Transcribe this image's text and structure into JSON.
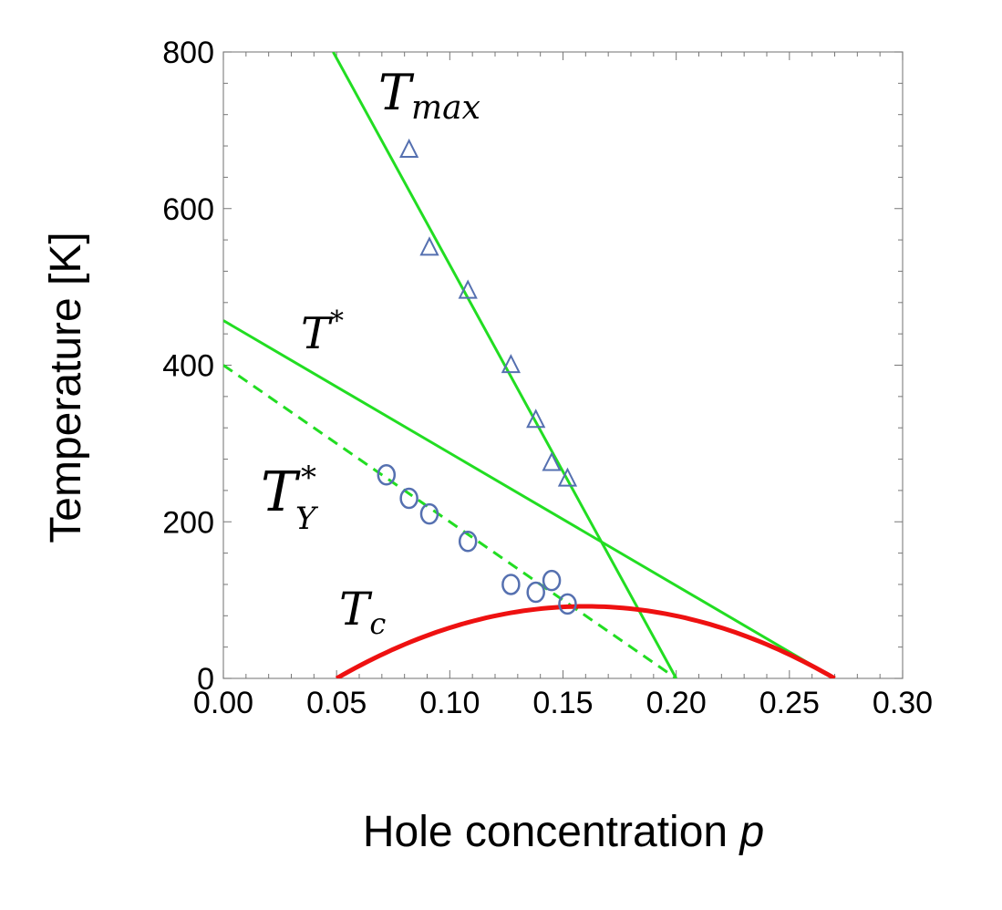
{
  "chart_data": {
    "type": "scatter",
    "xlabel": "Hole concentration",
    "xlabel_var": "p",
    "ylabel": "Temperature [K]",
    "xlim": [
      0,
      0.3
    ],
    "ylim": [
      0,
      800
    ],
    "xticks": [
      "0.00",
      "0.05",
      "0.10",
      "0.15",
      "0.20",
      "0.25",
      "0.30"
    ],
    "yticks": [
      "0",
      "200",
      "400",
      "600",
      "800"
    ],
    "grid": false,
    "colors": {
      "line_green": "#22dd22",
      "tc_red": "#ee1111",
      "marker_blue": "#5570b0"
    },
    "labels": {
      "tmax": "T",
      "tmax_sub": "max",
      "tstar": "T",
      "tstar_sup": "*",
      "ty": "T",
      "ty_sup": "*",
      "ty_sub": "Y",
      "tc": "T",
      "tc_sub": "c"
    },
    "lines": [
      {
        "name": "Tmax fit",
        "style": "solid",
        "points": [
          [
            0.0485,
            800
          ],
          [
            0.2,
            0
          ]
        ]
      },
      {
        "name": "T* fit",
        "style": "solid",
        "points": [
          [
            0,
            457
          ],
          [
            0.27,
            0
          ]
        ]
      },
      {
        "name": "T*Y fit",
        "style": "dashed",
        "points": [
          [
            0,
            400
          ],
          [
            0.2,
            0
          ]
        ]
      }
    ],
    "tc_dome": {
      "p_min": 0.05,
      "p_max": 0.27,
      "p_opt": 0.16,
      "Tc_max": 92
    },
    "series": [
      {
        "name": "T_max",
        "marker": "triangle",
        "points": [
          [
            0.082,
            675
          ],
          [
            0.091,
            550
          ],
          [
            0.108,
            495
          ],
          [
            0.127,
            400
          ],
          [
            0.138,
            330
          ],
          [
            0.145,
            275
          ],
          [
            0.152,
            255
          ]
        ]
      },
      {
        "name": "T*_Y",
        "marker": "circle",
        "points": [
          [
            0.072,
            260
          ],
          [
            0.082,
            230
          ],
          [
            0.091,
            210
          ],
          [
            0.108,
            175
          ],
          [
            0.127,
            120
          ],
          [
            0.138,
            110
          ],
          [
            0.145,
            125
          ],
          [
            0.152,
            95
          ]
        ]
      }
    ]
  }
}
